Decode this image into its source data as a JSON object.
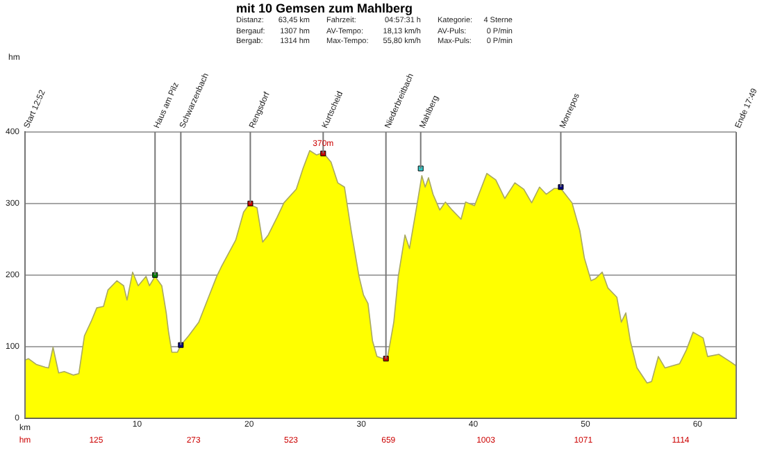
{
  "chart_data": {
    "type": "area",
    "title": "mit 10 Gemsen zum Mahlberg",
    "xlabel": "km",
    "series": [
      {
        "color": "#ffff00",
        "x": [
          0,
          0.3,
          1,
          1.8,
          2.1,
          2.5,
          3,
          3.5,
          4.3,
          4.8,
          5.3,
          5.9,
          6.4,
          7,
          7.4,
          8.2,
          8.8,
          9.1,
          9.6,
          10.1,
          10.8,
          11.1,
          11.6,
          12.2,
          12.6,
          12.8,
          13.1,
          13.6,
          13.9,
          14.6,
          15.5,
          16.3,
          17.1,
          17.5,
          18.8,
          19.5,
          20,
          20.7,
          21.2,
          21.7,
          22.5,
          23.1,
          24.2,
          24.8,
          25.4,
          26,
          26.6,
          27.3,
          27.9,
          28.5,
          29.1,
          29.8,
          30.2,
          30.6,
          31,
          31.4,
          32.3,
          32.9,
          33.3,
          33.9,
          34.3,
          35,
          35.4,
          35.7,
          36,
          36.4,
          37,
          37.5,
          38.1,
          38.9,
          39.3,
          40.1,
          41.2,
          42,
          42.8,
          43.7,
          44.5,
          45.2,
          45.9,
          46.5,
          47.2,
          47.8,
          48.8,
          49.5,
          49.9,
          50.5,
          50.9,
          51.5,
          52,
          52.8,
          53.2,
          53.6,
          54,
          54.6,
          55.5,
          55.9,
          56.5,
          57.1,
          58.4,
          59,
          59.6,
          60.5,
          60.9,
          61.9,
          62.9,
          63.45
        ],
        "values": [
          81,
          83,
          75,
          71,
          70,
          99,
          63,
          65,
          60,
          62,
          115,
          135,
          154,
          156,
          179,
          192,
          185,
          165,
          204,
          185,
          198,
          185,
          198,
          185,
          147,
          121,
          92,
          92,
          102,
          115,
          134,
          166,
          198,
          211,
          249,
          288,
          299,
          294,
          246,
          256,
          281,
          301,
          320,
          349,
          374,
          368,
          371,
          358,
          329,
          323,
          262,
          198,
          172,
          160,
          108,
          86,
          81,
          134,
          198,
          256,
          237,
          301,
          339,
          323,
          336,
          313,
          291,
          302,
          291,
          278,
          302,
          297,
          342,
          333,
          307,
          329,
          320,
          301,
          323,
          313,
          321,
          321,
          301,
          262,
          224,
          192,
          195,
          204,
          182,
          169,
          134,
          147,
          108,
          70,
          49,
          51,
          86,
          70,
          76,
          95,
          120,
          112,
          86,
          89,
          79,
          73
        ]
      },
      {
        "type": "scatter",
        "marker": "square",
        "x": [
          11.6,
          13.9,
          20.1,
          26.6,
          32.2,
          35.3,
          47.8
        ],
        "values": [
          200,
          102,
          300,
          370,
          83,
          349,
          323
        ],
        "colors": [
          "#008000",
          "#000080",
          "#cc0000",
          "#cc0000",
          "#cc0000",
          "#33cccc",
          "#000080"
        ],
        "value_labels": [
          null,
          null,
          null,
          "370m",
          null,
          null,
          null
        ]
      }
    ],
    "xlim": [
      0,
      63.45
    ],
    "xticks": [
      10,
      20,
      30,
      40,
      50,
      60
    ],
    "ylim": [
      0,
      400
    ],
    "yticks": [
      0,
      100,
      200,
      300,
      400
    ],
    "grid": "y",
    "legend": false,
    "annotations": [
      "Distanz:",
      "63,45 km",
      "Fahrzeit:",
      "04:57:31 h",
      "Kategorie:",
      "4 Sterne",
      "Bergauf:",
      "1307 hm",
      "AV-Tempo:",
      "18,13 km/h",
      "AV-Puls:",
      "0 P/min",
      "Bergab:",
      "1314 hm",
      "Max-Tempo:",
      "55,80 km/h",
      "Max-Puls:",
      "0 P/min",
      "Start 12:52",
      "Ende 17:49",
      "hm",
      "hm",
      "125",
      "273",
      "523",
      "659",
      "1003",
      "1071",
      "1114",
      {
        "text": "Haus am Pilz",
        "x": 11.6,
        "y": 200
      },
      {
        "text": "Schwarzenbach",
        "x": 13.9,
        "y": 102
      },
      {
        "text": "Rengsdorf",
        "x": 20.1,
        "y": 300
      },
      {
        "text": "Kurtscheid",
        "x": 26.6,
        "y": 370
      },
      {
        "text": "Niederbreitbach",
        "x": 32.2,
        "y": 83
      },
      {
        "text": "Mahlberg",
        "x": 35.3,
        "y": 349
      },
      {
        "text": "Monrepos",
        "x": 47.8,
        "y": 323
      }
    ]
  }
}
